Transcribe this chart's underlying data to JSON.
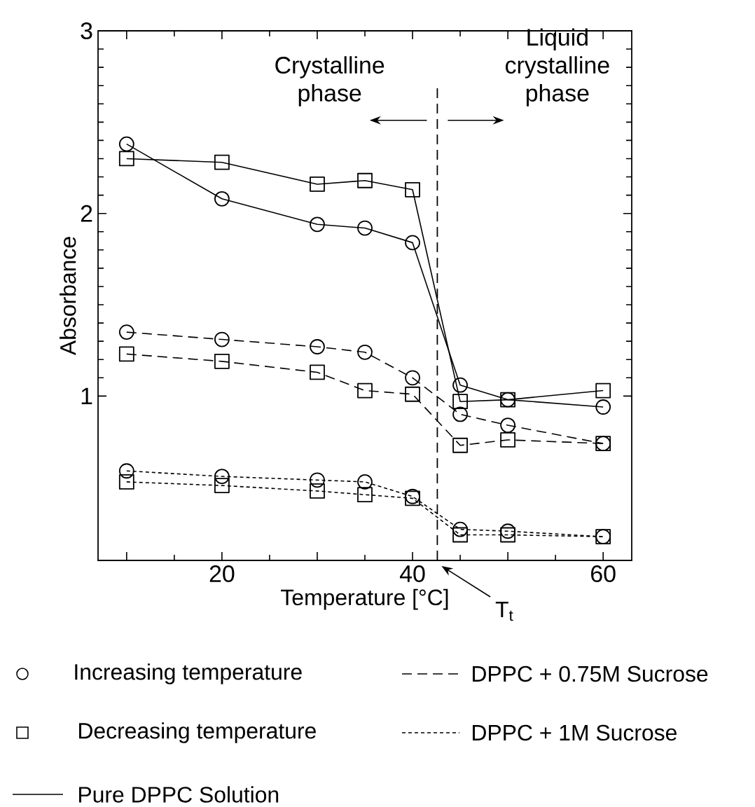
{
  "chart_data": {
    "type": "line",
    "xlabel": "Temperature   [°C]",
    "ylabel": "Absorbance",
    "xlim": [
      7,
      63
    ],
    "ylim": [
      0.1,
      3
    ],
    "xticks": [
      {
        "value": 10,
        "label": null
      },
      20,
      {
        "value": 30,
        "label": null
      },
      40,
      {
        "value": 50,
        "label": null
      },
      60
    ],
    "yticks": [
      1,
      2,
      3
    ],
    "series": [
      {
        "color": "#000000",
        "marker": "circle",
        "line_style": "solid",
        "x": [
          10,
          20,
          30,
          35,
          40,
          45,
          50,
          60
        ],
        "values": [
          2.38,
          2.08,
          1.94,
          1.92,
          1.84,
          1.06,
          0.98,
          0.94
        ]
      },
      {
        "color": "#000000",
        "marker": "square",
        "line_style": "solid",
        "x": [
          10,
          20,
          30,
          35,
          40,
          45,
          50,
          60
        ],
        "values": [
          2.3,
          2.28,
          2.16,
          2.18,
          2.13,
          0.97,
          0.98,
          1.03
        ]
      },
      {
        "color": "#000000",
        "marker": "circle",
        "line_style": "dashed",
        "x": [
          10,
          20,
          30,
          35,
          40,
          45,
          50,
          60
        ],
        "values": [
          1.35,
          1.31,
          1.27,
          1.24,
          1.1,
          0.9,
          0.84,
          0.74
        ]
      },
      {
        "color": "#000000",
        "marker": "square",
        "line_style": "dashed",
        "x": [
          10,
          20,
          30,
          35,
          40,
          45,
          50,
          60
        ],
        "values": [
          1.23,
          1.19,
          1.13,
          1.03,
          1.01,
          0.73,
          0.76,
          0.74
        ]
      },
      {
        "color": "#000000",
        "marker": "circle",
        "line_style": "dotted",
        "x": [
          10,
          20,
          30,
          35,
          40,
          45,
          50,
          60
        ],
        "values": [
          0.59,
          0.56,
          0.54,
          0.53,
          0.45,
          0.27,
          0.26,
          0.23
        ]
      },
      {
        "color": "#000000",
        "marker": "square",
        "line_style": "dotted",
        "x": [
          10,
          20,
          30,
          35,
          40,
          45,
          50,
          60
        ],
        "values": [
          0.53,
          0.51,
          0.48,
          0.46,
          0.44,
          0.24,
          0.24,
          0.23
        ]
      }
    ],
    "ref_lines": [
      {
        "axis": "x",
        "value": 42.6,
        "label": "T$_{t}$",
        "line_style": "dashed",
        "color": "#000000"
      }
    ],
    "annotations": [
      "Crystalline phase",
      "Liquid crystalline phase",
      "Increasing temperature",
      "Decreasing temperature",
      "DPPC + 0.75M Sucrose",
      "DPPC + 1M Sucrose",
      "Pure DPPC Solution"
    ]
  }
}
